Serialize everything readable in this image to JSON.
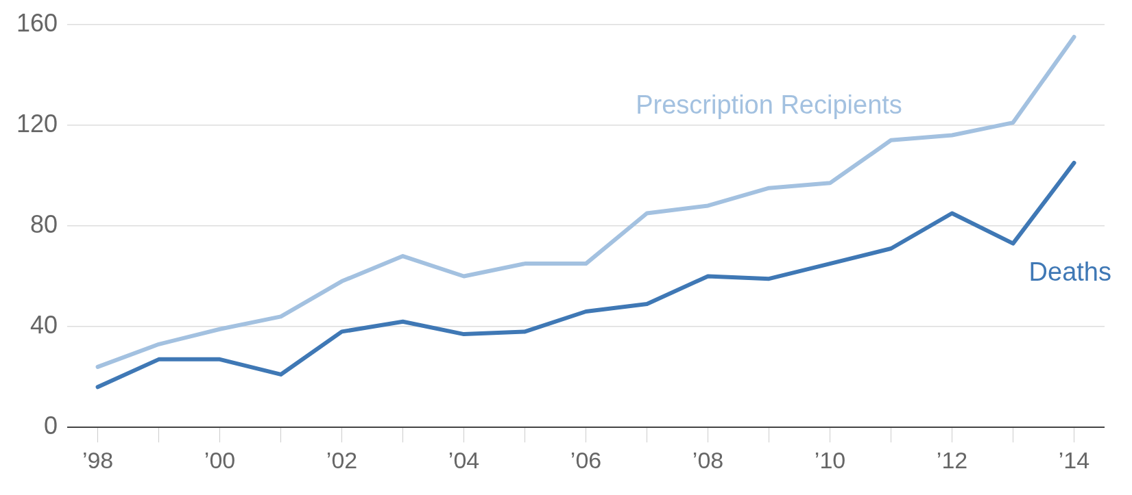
{
  "chart_data": {
    "type": "line",
    "categories": [
      "’98",
      null,
      "’00",
      null,
      "’02",
      null,
      "’04",
      null,
      "’06",
      null,
      "’08",
      null,
      "’10",
      null,
      "’12",
      null,
      "’14"
    ],
    "series": [
      {
        "name": "Prescription Recipients",
        "color": "#a3c1e0",
        "values": [
          24,
          33,
          39,
          44,
          58,
          68,
          60,
          65,
          65,
          85,
          88,
          95,
          97,
          114,
          116,
          121,
          155
        ]
      },
      {
        "name": "Deaths",
        "color": "#3f78b5",
        "values": [
          16,
          27,
          27,
          21,
          38,
          42,
          37,
          38,
          46,
          49,
          60,
          59,
          65,
          71,
          85,
          73,
          105
        ]
      }
    ],
    "ylim": [
      0,
      160
    ],
    "yticks": [
      0,
      40,
      80,
      120,
      160
    ],
    "grid": "y",
    "legend": false,
    "marker": "none",
    "line_style": "solid"
  }
}
